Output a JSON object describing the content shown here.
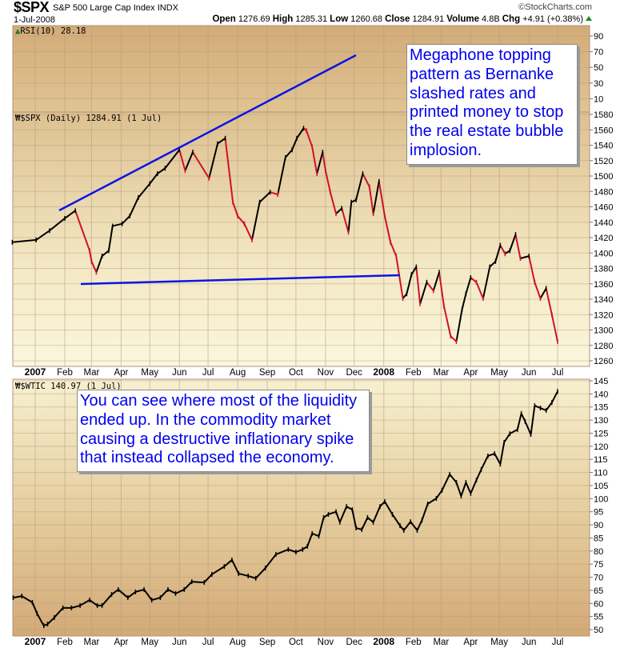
{
  "header": {
    "symbol": "$SPX",
    "name": "S&P 500 Large Cap Index",
    "exchange": "INDX",
    "date": "1-Jul-2008",
    "copyright": "©StockCharts.com",
    "open_label": "Open",
    "open": "1276.69",
    "high_label": "High",
    "high": "1285.31",
    "low_label": "Low",
    "low": "1260.68",
    "close_label": "Close",
    "close": "1284.91",
    "volume_label": "Volume",
    "volume": "4.8B",
    "chg_label": "Chg",
    "chg": "+4.91 (+0.38%)",
    "chg_direction": "up"
  },
  "annotations": {
    "note1": [
      "Megaphone topping",
      "pattern as Bernanke",
      "slashed rates and",
      "printed money to stop",
      "the real estate bubble",
      "implosion."
    ],
    "note2": [
      "You can see where most of the liquidity",
      "ended up. In the commodity market",
      "causing a destructive inflationary spike",
      "that instead collapsed the economy."
    ],
    "trendline_color": "#0a14e6"
  },
  "chart_data": [
    {
      "type": "line",
      "panel": "indicator",
      "title": "RSI(10) 28.18",
      "ylim": [
        0,
        100
      ],
      "yticks": [
        90,
        70,
        50,
        30,
        10
      ],
      "grid": true
    },
    {
      "type": "line",
      "panel": "price",
      "title": "$SPX (Daily) 1284.91 (1 Jul)",
      "up_color": "#000000",
      "down_color": "#d0102a",
      "ylim": [
        1250,
        1585
      ],
      "yticks": [
        1580,
        1560,
        1540,
        1520,
        1500,
        1480,
        1460,
        1440,
        1420,
        1400,
        1380,
        1360,
        1340,
        1320,
        1300,
        1280,
        1260
      ],
      "grid": true,
      "x": [
        "2006-12-08",
        "2007-01-02",
        "2007-01-16",
        "2007-02-01",
        "2007-02-12",
        "2007-02-27",
        "2007-03-01",
        "2007-03-06",
        "2007-03-12",
        "2007-03-19",
        "2007-03-23",
        "2007-04-02",
        "2007-04-10",
        "2007-04-19",
        "2007-05-01",
        "2007-05-09",
        "2007-05-17",
        "2007-06-01",
        "2007-06-07",
        "2007-06-15",
        "2007-07-02",
        "2007-07-11",
        "2007-07-19",
        "2007-07-27",
        "2007-08-01",
        "2007-08-08",
        "2007-08-16",
        "2007-08-24",
        "2007-09-04",
        "2007-09-12",
        "2007-09-20",
        "2007-09-27",
        "2007-10-02",
        "2007-10-09",
        "2007-10-12",
        "2007-10-18",
        "2007-10-23",
        "2007-10-29",
        "2007-11-01",
        "2007-11-06",
        "2007-11-12",
        "2007-11-18",
        "2007-11-25",
        "2007-11-28",
        "2007-12-03",
        "2007-12-10",
        "2007-12-17",
        "2007-12-21",
        "2007-12-27",
        "2008-01-02",
        "2008-01-08",
        "2008-01-14",
        "2008-01-21",
        "2008-01-25",
        "2008-01-30",
        "2008-02-04",
        "2008-02-08",
        "2008-02-15",
        "2008-02-22",
        "2008-02-28",
        "2008-03-04",
        "2008-03-11",
        "2008-03-17",
        "2008-03-23",
        "2008-03-27",
        "2008-04-01",
        "2008-04-07",
        "2008-04-14",
        "2008-04-21",
        "2008-04-27",
        "2008-05-02",
        "2008-05-07",
        "2008-05-12",
        "2008-05-18",
        "2008-05-23",
        "2008-06-01",
        "2008-06-07",
        "2008-06-13",
        "2008-06-19",
        "2008-06-25",
        "2008-07-01"
      ],
      "y": [
        1414,
        1417,
        1429,
        1445,
        1455,
        1403,
        1389,
        1375,
        1396,
        1403,
        1435,
        1438,
        1448,
        1472,
        1490,
        1503,
        1510,
        1534,
        1507,
        1531,
        1497,
        1542,
        1549,
        1466,
        1448,
        1438,
        1417,
        1466,
        1479,
        1476,
        1524,
        1534,
        1549,
        1562,
        1559,
        1538,
        1503,
        1531,
        1507,
        1479,
        1451,
        1458,
        1427,
        1466,
        1469,
        1503,
        1486,
        1451,
        1493,
        1448,
        1414,
        1396,
        1341,
        1347,
        1372,
        1382,
        1334,
        1362,
        1351,
        1375,
        1331,
        1292,
        1285,
        1327,
        1347,
        1368,
        1362,
        1341,
        1382,
        1389,
        1410,
        1399,
        1403,
        1424,
        1393,
        1396,
        1362,
        1341,
        1354,
        1320,
        1284.91
      ]
    },
    {
      "type": "line",
      "panel": "comparison",
      "title": "$WTIC 140.97 (1 Jul)",
      "color": "#000000",
      "ylim": [
        48,
        146
      ],
      "yticks": [
        145,
        140,
        135,
        130,
        125,
        120,
        115,
        110,
        105,
        100,
        95,
        90,
        85,
        80,
        75,
        70,
        65,
        60,
        55,
        50
      ],
      "grid": true,
      "x": [
        "2006-12-09",
        "2006-12-18",
        "2006-12-29",
        "2007-01-03",
        "2007-01-10",
        "2007-01-14",
        "2007-01-21",
        "2007-01-30",
        "2007-02-08",
        "2007-02-17",
        "2007-02-27",
        "2007-03-07",
        "2007-03-12",
        "2007-03-22",
        "2007-03-29",
        "2007-04-08",
        "2007-04-16",
        "2007-04-25",
        "2007-05-03",
        "2007-05-12",
        "2007-05-20",
        "2007-05-28",
        "2007-06-06",
        "2007-06-14",
        "2007-06-27",
        "2007-07-05",
        "2007-07-18",
        "2007-07-26",
        "2007-08-02",
        "2007-08-12",
        "2007-08-20",
        "2007-08-30",
        "2007-09-10",
        "2007-09-23",
        "2007-10-01",
        "2007-10-08",
        "2007-10-13",
        "2007-10-18",
        "2007-10-25",
        "2007-10-30",
        "2007-11-04",
        "2007-11-12",
        "2007-11-16",
        "2007-11-23",
        "2007-11-29",
        "2007-12-03",
        "2007-12-09",
        "2007-12-15",
        "2007-12-21",
        "2007-12-28",
        "2008-01-02",
        "2008-01-10",
        "2008-01-18",
        "2008-01-22",
        "2008-01-29",
        "2008-02-05",
        "2008-02-10",
        "2008-02-16",
        "2008-02-25",
        "2008-03-02",
        "2008-03-10",
        "2008-03-17",
        "2008-03-22",
        "2008-03-27",
        "2008-04-01",
        "2008-04-07",
        "2008-04-12",
        "2008-04-19",
        "2008-04-26",
        "2008-05-02",
        "2008-05-06",
        "2008-05-12",
        "2008-05-20",
        "2008-05-24",
        "2008-05-28",
        "2008-06-03",
        "2008-06-07",
        "2008-06-13",
        "2008-06-19",
        "2008-06-25",
        "2008-07-01"
      ],
      "y": [
        62.2,
        62.8,
        60.4,
        56.1,
        51.5,
        52.1,
        54.6,
        58.3,
        58.3,
        59.2,
        61.3,
        59.2,
        59.2,
        63.4,
        65.3,
        62.2,
        64.4,
        65.3,
        61.3,
        62.2,
        65.3,
        63.8,
        65.3,
        68.3,
        68.0,
        71.1,
        74.1,
        76.6,
        71.4,
        70.5,
        69.6,
        73.5,
        78.7,
        80.6,
        79.6,
        80.6,
        81.8,
        86.7,
        85.7,
        92.8,
        94.0,
        95.0,
        91.0,
        97.0,
        95.8,
        88.8,
        88.2,
        92.8,
        91.0,
        97.0,
        98.9,
        94.0,
        89.7,
        87.9,
        91.2,
        87.9,
        91.8,
        98.0,
        100.1,
        103.2,
        109.3,
        106.2,
        101.0,
        106.2,
        102.0,
        107.1,
        111.1,
        116.3,
        117.2,
        113.2,
        121.5,
        124.8,
        126.4,
        132.5,
        129.5,
        124.5,
        135.5,
        134.6,
        133.7,
        136.7,
        140.97
      ]
    }
  ],
  "x_axis": {
    "ticks": [
      {
        "date": "2007-01-01",
        "label": "2007",
        "year": true
      },
      {
        "date": "2007-02-01",
        "label": "Feb"
      },
      {
        "date": "2007-03-01",
        "label": "Mar"
      },
      {
        "date": "2007-04-01",
        "label": "Apr"
      },
      {
        "date": "2007-05-01",
        "label": "May"
      },
      {
        "date": "2007-06-01",
        "label": "Jun"
      },
      {
        "date": "2007-07-01",
        "label": "Jul"
      },
      {
        "date": "2007-08-01",
        "label": "Aug"
      },
      {
        "date": "2007-09-01",
        "label": "Sep"
      },
      {
        "date": "2007-10-01",
        "label": "Oct"
      },
      {
        "date": "2007-11-01",
        "label": "Nov"
      },
      {
        "date": "2007-12-01",
        "label": "Dec"
      },
      {
        "date": "2008-01-01",
        "label": "2008",
        "year": true
      },
      {
        "date": "2008-02-01",
        "label": "Feb"
      },
      {
        "date": "2008-03-01",
        "label": "Mar"
      },
      {
        "date": "2008-04-01",
        "label": "Apr"
      },
      {
        "date": "2008-05-01",
        "label": "May"
      },
      {
        "date": "2008-06-01",
        "label": "Jun"
      },
      {
        "date": "2008-07-01",
        "label": "Jul"
      }
    ]
  }
}
